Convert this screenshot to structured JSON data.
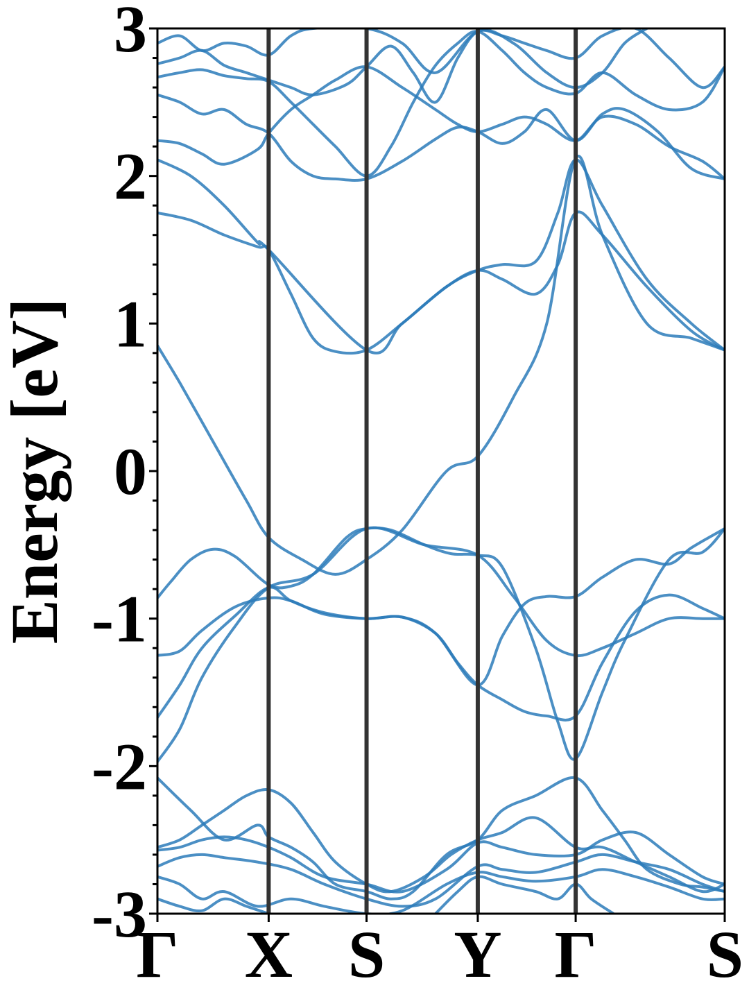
{
  "chart_data": {
    "type": "line",
    "title": "",
    "xlabel": "",
    "ylabel": "Energy [eV]",
    "ylim": [
      -3,
      3
    ],
    "yticks": [
      "3",
      "2",
      "1",
      "0",
      "-1",
      "-2",
      "-3"
    ],
    "ytick_values": [
      3,
      2,
      1,
      0,
      -1,
      -2,
      -3
    ],
    "minor_tick_step": 0.2,
    "kpoints": [
      {
        "label": "Γ",
        "k": 0.0
      },
      {
        "label": "X",
        "k": 0.5
      },
      {
        "label": "S",
        "k": 0.94
      },
      {
        "label": "Y",
        "k": 1.44
      },
      {
        "label": "Γ",
        "k": 1.88
      },
      {
        "label": "S",
        "k": 2.55
      }
    ],
    "grid": false,
    "legend": "none",
    "colors": {
      "bands": "#2b7bba",
      "kpath_lines": "#333333",
      "axes": "#000000"
    },
    "series": [
      {
        "x": [
          0,
          0.06,
          0.15,
          0.25,
          0.35,
          0.5,
          0.6,
          0.7,
          0.85,
          0.94,
          1.05,
          1.2,
          1.32,
          1.44,
          1.55,
          1.7,
          1.8,
          1.88,
          2.0,
          2.1,
          2.3,
          2.45,
          2.55
        ],
        "y": [
          -0.86,
          -0.75,
          -0.6,
          -0.53,
          -0.58,
          -0.77,
          -0.78,
          -0.7,
          -0.45,
          -0.39,
          -0.4,
          -0.5,
          -0.56,
          -0.57,
          -0.65,
          -1.2,
          -1.7,
          -1.95,
          -1.5,
          -1.15,
          -0.6,
          -0.55,
          -0.39
        ]
      },
      {
        "x": [
          0,
          0.1,
          0.2,
          0.35,
          0.5,
          0.6,
          0.75,
          0.94,
          1.1,
          1.25,
          1.35,
          1.44,
          1.55,
          1.65,
          1.75,
          1.88,
          2.0,
          2.15,
          2.3,
          2.45,
          2.55
        ],
        "y": [
          -1.25,
          -1.22,
          -1.08,
          -0.92,
          -0.86,
          -0.88,
          -0.97,
          -1.0,
          -0.99,
          -1.1,
          -1.3,
          -1.45,
          -1.55,
          -1.63,
          -1.66,
          -1.66,
          -1.3,
          -0.95,
          -0.84,
          -0.93,
          -1.0
        ]
      },
      {
        "x": [
          0,
          0.1,
          0.2,
          0.35,
          0.5,
          0.6,
          0.75,
          0.94,
          1.1,
          1.25,
          1.44,
          1.55,
          1.65,
          1.75,
          1.88,
          2.0,
          2.15,
          2.3,
          2.4,
          2.55
        ],
        "y": [
          -1.67,
          -1.45,
          -1.2,
          -0.98,
          -0.79,
          -0.88,
          -0.96,
          -1.0,
          -0.99,
          -1.1,
          -1.45,
          -1.12,
          -0.9,
          -0.85,
          -0.85,
          -0.72,
          -0.6,
          -0.63,
          -0.52,
          -0.39
        ]
      },
      {
        "x": [
          0,
          0.1,
          0.2,
          0.35,
          0.5,
          0.7,
          0.94,
          1.2,
          1.44,
          1.6,
          1.75,
          1.88,
          2.0,
          2.15,
          2.3,
          2.45,
          2.55
        ],
        "y": [
          -1.97,
          -1.75,
          -1.4,
          -1.05,
          -0.79,
          -0.7,
          -0.39,
          -0.5,
          -0.57,
          -0.85,
          -1.15,
          -1.25,
          -1.2,
          -1.1,
          -1.0,
          -1.0,
          -1.0
        ]
      },
      {
        "x": [
          0,
          0.1,
          0.25,
          0.4,
          0.5,
          0.65,
          0.8,
          0.94,
          1.1,
          1.3,
          1.44,
          1.6,
          1.75,
          1.88,
          2.0,
          2.2,
          2.4,
          2.55
        ],
        "y": [
          0.85,
          0.6,
          0.2,
          -0.2,
          -0.45,
          -0.6,
          -0.7,
          -0.6,
          -0.4,
          0.0,
          0.1,
          0.5,
          1.0,
          2.12,
          1.6,
          1.0,
          0.9,
          0.82
        ]
      },
      {
        "x": [
          0,
          0.15,
          0.3,
          0.45,
          0.5,
          0.6,
          0.7,
          0.8,
          0.94,
          1.1,
          1.3,
          1.44,
          1.55,
          1.7,
          1.8,
          1.88,
          2.0,
          2.2,
          2.4,
          2.55
        ],
        "y": [
          1.75,
          1.7,
          1.6,
          1.52,
          1.5,
          1.2,
          0.9,
          0.81,
          0.82,
          1.0,
          1.25,
          1.36,
          1.3,
          1.2,
          1.4,
          1.75,
          1.6,
          1.25,
          0.95,
          0.82
        ]
      },
      {
        "x": [
          0,
          0.15,
          0.3,
          0.45,
          0.5,
          0.94,
          1.1,
          1.3,
          1.44,
          1.55,
          1.7,
          1.8,
          1.88,
          2.0,
          2.2,
          2.4,
          2.55
        ],
        "y": [
          2.11,
          2.0,
          1.8,
          1.55,
          1.5,
          0.82,
          1.0,
          1.25,
          1.36,
          1.4,
          1.42,
          1.75,
          2.11,
          1.8,
          1.3,
          1.0,
          0.82
        ]
      },
      {
        "x": [
          0,
          0.1,
          0.2,
          0.3,
          0.45,
          0.5,
          0.6,
          0.7,
          0.8,
          0.94,
          1.1,
          1.25,
          1.35,
          1.44,
          1.55,
          1.65,
          1.75,
          1.88,
          2.0,
          2.15,
          2.3,
          2.45,
          2.55
        ],
        "y": [
          2.24,
          2.22,
          2.15,
          2.08,
          2.18,
          2.29,
          2.45,
          2.55,
          2.65,
          2.74,
          2.6,
          2.45,
          2.35,
          2.3,
          2.35,
          2.4,
          2.35,
          2.24,
          2.4,
          2.35,
          2.2,
          2.1,
          1.98
        ]
      },
      {
        "x": [
          0,
          0.1,
          0.2,
          0.3,
          0.4,
          0.5,
          0.6,
          0.7,
          0.8,
          0.94,
          1.1,
          1.25,
          1.35,
          1.44,
          1.55,
          1.65,
          1.75,
          1.88,
          2.0,
          2.1,
          2.25,
          2.4,
          2.55
        ],
        "y": [
          2.55,
          2.5,
          2.42,
          2.45,
          2.35,
          2.29,
          2.1,
          2.0,
          1.98,
          1.98,
          2.1,
          2.25,
          2.33,
          2.3,
          2.22,
          2.3,
          2.45,
          2.24,
          2.42,
          2.45,
          2.3,
          2.05,
          1.98
        ]
      },
      {
        "x": [
          0,
          0.1,
          0.2,
          0.3,
          0.4,
          0.5,
          0.6,
          0.7,
          0.8,
          0.94,
          1.05,
          1.15,
          1.25,
          1.35,
          1.44,
          1.55,
          1.65,
          1.75,
          1.88,
          2.0,
          2.15,
          2.3,
          2.45,
          2.55
        ],
        "y": [
          2.67,
          2.7,
          2.72,
          2.68,
          2.66,
          2.64,
          2.5,
          2.35,
          2.2,
          2.0,
          2.2,
          2.5,
          2.75,
          2.9,
          2.98,
          2.85,
          2.7,
          2.6,
          2.56,
          2.7,
          2.55,
          2.45,
          2.5,
          2.74
        ]
      },
      {
        "x": [
          0,
          0.1,
          0.2,
          0.3,
          0.4,
          0.5,
          0.6,
          0.7,
          0.85,
          0.94,
          1.05,
          1.15,
          1.25,
          1.35,
          1.44,
          1.55,
          1.65,
          1.75,
          1.88,
          2.0,
          2.15,
          2.3,
          2.45,
          2.55
        ],
        "y": [
          2.76,
          2.8,
          2.85,
          2.75,
          2.7,
          2.65,
          2.6,
          2.55,
          2.62,
          2.74,
          2.88,
          2.7,
          2.5,
          2.8,
          2.98,
          2.95,
          2.9,
          2.85,
          2.8,
          2.95,
          3.0,
          2.8,
          2.6,
          2.74
        ]
      },
      {
        "x": [
          0,
          0.1,
          0.2,
          0.3,
          0.4,
          0.5,
          0.6,
          0.7,
          0.94,
          1.1,
          1.25,
          1.44,
          1.6,
          1.75,
          1.88,
          2.0,
          2.1,
          2.2
        ],
        "y": [
          2.9,
          2.95,
          2.85,
          2.9,
          2.88,
          2.82,
          2.95,
          3.0,
          3.0,
          2.9,
          2.7,
          2.98,
          2.9,
          2.7,
          2.6,
          2.7,
          2.9,
          3.0
        ]
      },
      {
        "x": [
          0,
          0.15,
          0.3,
          0.45,
          0.5,
          0.6,
          0.7,
          0.8,
          0.94,
          1.05,
          1.15,
          1.3,
          1.44,
          1.55,
          1.7,
          1.88,
          2.0,
          2.1,
          2.2,
          2.35,
          2.45,
          2.55
        ],
        "y": [
          -2.08,
          -2.3,
          -2.5,
          -2.4,
          -2.48,
          -2.55,
          -2.65,
          -2.8,
          -2.85,
          -2.9,
          -2.85,
          -2.6,
          -2.5,
          -2.3,
          -2.2,
          -2.08,
          -2.3,
          -2.5,
          -2.7,
          -2.8,
          -2.82,
          -2.85
        ]
      },
      {
        "x": [
          0,
          0.1,
          0.2,
          0.3,
          0.4,
          0.5,
          0.6,
          0.7,
          0.8,
          0.94,
          1.05,
          1.2,
          1.32,
          1.44,
          1.55,
          1.7,
          1.88,
          2.0,
          2.15,
          2.3,
          2.45,
          2.55
        ],
        "y": [
          -2.55,
          -2.5,
          -2.4,
          -2.3,
          -2.2,
          -2.16,
          -2.25,
          -2.45,
          -2.65,
          -2.8,
          -2.85,
          -2.75,
          -2.6,
          -2.5,
          -2.45,
          -2.35,
          -2.55,
          -2.55,
          -2.65,
          -2.75,
          -2.85,
          -2.8
        ]
      },
      {
        "x": [
          0,
          0.1,
          0.2,
          0.3,
          0.4,
          0.5,
          0.6,
          0.75,
          0.94,
          1.1,
          1.3,
          1.44,
          1.55,
          1.7,
          1.88,
          2.0,
          2.15,
          2.3,
          2.45,
          2.55
        ],
        "y": [
          -2.57,
          -2.55,
          -2.5,
          -2.48,
          -2.5,
          -2.55,
          -2.62,
          -2.75,
          -2.8,
          -2.85,
          -2.7,
          -2.52,
          -2.55,
          -2.6,
          -2.6,
          -2.5,
          -2.45,
          -2.6,
          -2.75,
          -2.8
        ]
      },
      {
        "x": [
          0,
          0.1,
          0.2,
          0.3,
          0.45,
          0.6,
          0.75,
          0.94,
          1.1,
          1.25,
          1.44,
          1.55,
          1.7,
          1.88,
          2.0,
          2.15,
          2.3,
          2.45,
          2.55
        ],
        "y": [
          -2.68,
          -2.62,
          -2.6,
          -2.62,
          -2.65,
          -2.7,
          -2.8,
          -2.9,
          -2.95,
          -2.9,
          -2.68,
          -2.7,
          -2.72,
          -2.65,
          -2.6,
          -2.65,
          -2.7,
          -2.8,
          -2.85
        ]
      },
      {
        "x": [
          0,
          0.1,
          0.2,
          0.3,
          0.45,
          0.6,
          0.75,
          0.94,
          1.1,
          1.3,
          1.44,
          1.55,
          1.7,
          1.88,
          2.0,
          2.15,
          2.3,
          2.45,
          2.55
        ],
        "y": [
          -2.75,
          -2.8,
          -2.9,
          -2.85,
          -2.95,
          -2.9,
          -2.95,
          -3.0,
          -2.98,
          -2.8,
          -2.72,
          -2.75,
          -2.78,
          -2.75,
          -2.7,
          -2.75,
          -2.82,
          -2.9,
          -2.9
        ]
      },
      {
        "x": [
          0,
          0.1,
          0.2,
          0.3,
          0.4,
          0.5
        ],
        "y": [
          -2.9,
          -2.95,
          -2.98,
          -2.9,
          -2.95,
          -3.0
        ]
      },
      {
        "x": [
          1.25,
          1.35,
          1.44,
          1.55,
          1.7,
          1.8,
          1.88,
          1.95,
          2.05
        ],
        "y": [
          -3.0,
          -2.85,
          -2.75,
          -2.8,
          -2.85,
          -2.9,
          -2.8,
          -2.9,
          -3.0
        ]
      }
    ]
  }
}
